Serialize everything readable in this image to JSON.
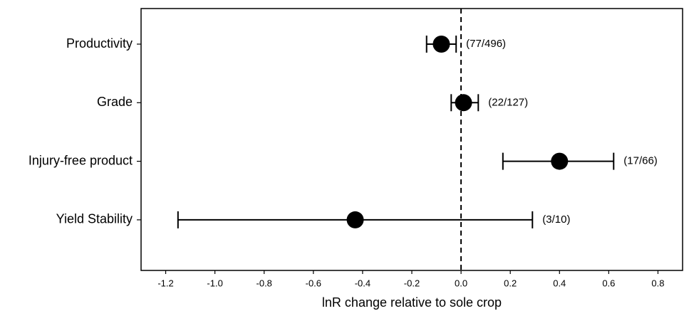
{
  "chart_data": {
    "type": "forest",
    "xlabel": "lnR change relative to sole crop",
    "categories": [
      "Productivity",
      "Grade",
      "Injury-free product",
      "Yield Stability"
    ],
    "values": [
      -0.08,
      0.01,
      0.4,
      -0.43
    ],
    "lower": [
      -0.14,
      -0.04,
      0.17,
      -1.15
    ],
    "upper": [
      -0.02,
      0.07,
      0.62,
      0.29
    ],
    "annotations": [
      "(77/496)",
      "(22/127)",
      "(17/66)",
      "(3/10)"
    ],
    "color": "#000000",
    "xlim": [
      -1.3,
      0.9
    ],
    "xticks": [
      -1.2,
      {
        "value": -1.0,
        "label": "-1.0"
      },
      -0.8,
      -0.6,
      -0.4,
      -0.2,
      {
        "value": 0.0,
        "label": "0.0"
      },
      0.2,
      0.4,
      0.6,
      0.8
    ],
    "vline": 0
  }
}
